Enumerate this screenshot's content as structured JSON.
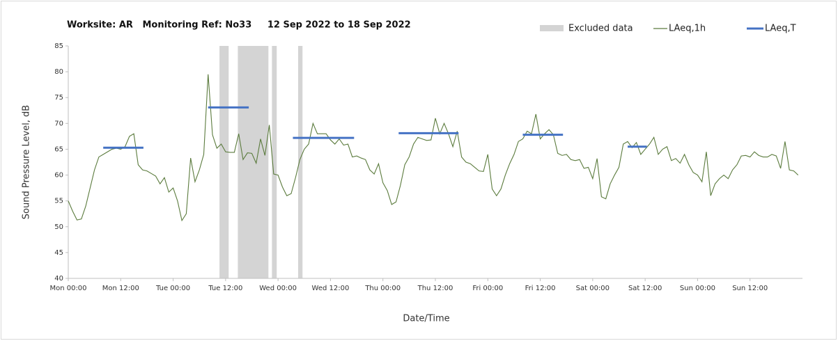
{
  "chart_data": {
    "type": "line",
    "title": "Worksite: AR   Monitoring Ref: No33     12 Sep 2022 to 18 Sep 2022",
    "x_label": "Date/Time",
    "y_label": "Sound Pressure Level, dB",
    "xlim": [
      0,
      168
    ],
    "ylim": [
      40,
      85
    ],
    "yticks": [
      40,
      45,
      50,
      55,
      60,
      65,
      70,
      75,
      80,
      85
    ],
    "xticks": [
      {
        "value": 0,
        "label": "Mon 00:00"
      },
      {
        "value": 12,
        "label": "Mon 12:00"
      },
      {
        "value": 24,
        "label": "Tue 00:00"
      },
      {
        "value": 36,
        "label": "Tue 12:00"
      },
      {
        "value": 48,
        "label": "Wed 00:00"
      },
      {
        "value": 60,
        "label": "Wed 12:00"
      },
      {
        "value": 72,
        "label": "Thu 00:00"
      },
      {
        "value": 84,
        "label": "Thu 12:00"
      },
      {
        "value": 96,
        "label": "Fri 00:00"
      },
      {
        "value": 108,
        "label": "Fri 12:00"
      },
      {
        "value": 120,
        "label": "Sat 00:00"
      },
      {
        "value": 132,
        "label": "Sat 12:00"
      },
      {
        "value": 144,
        "label": "Sun 00:00"
      },
      {
        "value": 156,
        "label": "Sun 12:00"
      }
    ],
    "x": [
      0,
      1,
      2,
      3,
      4,
      5,
      6,
      7,
      8,
      9,
      10,
      11,
      12,
      13,
      14,
      15,
      16,
      17,
      18,
      19,
      20,
      21,
      22,
      23,
      24,
      25,
      26,
      27,
      28,
      29,
      30,
      31,
      32,
      33,
      34,
      35,
      36,
      37,
      38,
      39,
      40,
      41,
      42,
      43,
      44,
      45,
      46,
      47,
      48,
      49,
      50,
      51,
      52,
      53,
      54,
      55,
      56,
      57,
      58,
      59,
      60,
      61,
      62,
      63,
      64,
      65,
      66,
      67,
      68,
      69,
      70,
      71,
      72,
      73,
      74,
      75,
      76,
      77,
      78,
      79,
      80,
      81,
      82,
      83,
      84,
      85,
      86,
      87,
      88,
      89,
      90,
      91,
      92,
      93,
      94,
      95,
      96,
      97,
      98,
      99,
      100,
      101,
      102,
      103,
      104,
      105,
      106,
      107,
      108,
      109,
      110,
      111,
      112,
      113,
      114,
      115,
      116,
      117,
      118,
      119,
      120,
      121,
      122,
      123,
      124,
      125,
      126,
      127,
      128,
      129,
      130,
      131,
      132,
      133,
      134,
      135,
      136,
      137,
      138,
      139,
      140,
      141,
      142,
      143,
      144,
      145,
      146,
      147,
      148,
      149,
      150,
      151,
      152,
      153,
      154,
      155,
      156,
      157,
      158,
      159,
      160,
      161,
      162,
      163,
      164,
      165,
      166,
      167
    ],
    "series": [
      {
        "name": "LAeq,1h",
        "color": "#5b7b3d",
        "values": [
          55,
          53,
          51.3,
          51.5,
          54,
          57.5,
          61,
          63.5,
          64,
          64.5,
          65,
          65.2,
          65,
          65.5,
          67.5,
          68,
          62,
          61,
          60.8,
          60.3,
          59.8,
          58.3,
          59.5,
          56.7,
          57.5,
          55,
          51.2,
          52.5,
          63.3,
          58.7,
          61,
          64,
          79.5,
          67.8,
          65.2,
          66,
          64.5,
          64.4,
          64.4,
          68,
          63,
          64.3,
          64.2,
          62.3,
          67,
          63.8,
          69.7,
          60.2,
          60,
          57.7,
          56,
          56.4,
          59.5,
          63,
          65,
          66,
          70,
          68,
          68,
          68,
          66.8,
          66,
          67,
          65.8,
          66,
          63.5,
          63.7,
          63.3,
          63,
          61,
          60.2,
          62.2,
          58.5,
          57,
          54.3,
          54.8,
          58,
          62,
          63.5,
          66,
          67.3,
          67,
          66.7,
          66.8,
          71,
          68,
          70,
          68,
          65.5,
          68.5,
          63.5,
          62.5,
          62.2,
          61.5,
          60.8,
          60.7,
          64,
          57.3,
          56,
          57.3,
          60,
          62.2,
          64,
          66.5,
          67,
          68.5,
          68,
          71.8,
          67,
          68,
          68.8,
          67.8,
          64.2,
          63.8,
          64,
          63,
          62.8,
          63,
          61.3,
          61.5,
          59.3,
          63.2,
          55.8,
          55.4,
          58.3,
          60,
          61.5,
          66,
          66.5,
          65.3,
          66.3,
          64,
          65,
          66,
          67.3,
          64,
          65,
          65.5,
          62.8,
          63.2,
          62.3,
          64,
          62,
          60.5,
          60,
          58.7,
          64.5,
          56,
          58.3,
          59.3,
          60,
          59.3,
          61,
          62,
          63.7,
          63.8,
          63.5,
          64.5,
          63.8,
          63.5,
          63.5,
          64,
          63.7,
          61.3,
          66.5,
          61,
          60.8,
          60
        ]
      }
    ],
    "excluded": {
      "name": "Excluded data",
      "color": "#d4d4d4",
      "ranges": [
        [
          34.6,
          36.7
        ],
        [
          38.8,
          45.8
        ],
        [
          46.6,
          47.7
        ],
        [
          52.6,
          53.6
        ]
      ]
    },
    "segments": {
      "name": "LAeq,T",
      "color": "#4472c4",
      "ranges": [
        [
          8,
          17.2
        ],
        [
          32,
          41.3
        ],
        [
          51.4,
          65.4
        ],
        [
          75.6,
          89.3
        ],
        [
          104,
          113.2
        ],
        [
          128,
          132.4
        ]
      ],
      "values": [
        65.3,
        73.1,
        67.2,
        68.1,
        67.8,
        65.5
      ]
    }
  }
}
